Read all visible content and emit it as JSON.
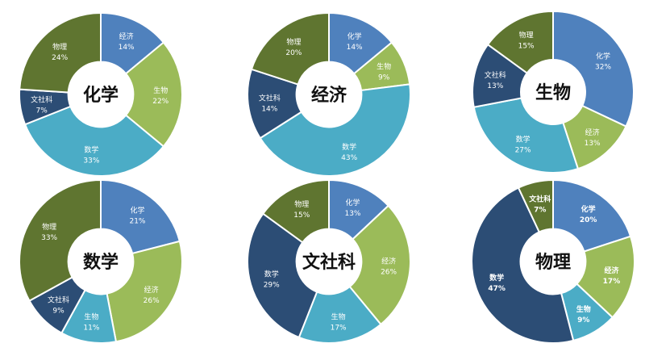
{
  "colors": {
    "化学": "#4f81bd",
    "经济": "#9bbb59",
    "数学": "#4bacc6",
    "文社科": "#2c4d75",
    "物理": "#5f7530",
    "生物": "#9bbb59"
  },
  "chart_data": [
    {
      "type": "pie",
      "title": "化学",
      "categories": [
        "经济",
        "生物",
        "数学",
        "文社科",
        "物理"
      ],
      "values": [
        14,
        22,
        33,
        7,
        24
      ],
      "labels": [
        "14%",
        "22%",
        "33%",
        "7%",
        "24%"
      ],
      "slice_colors": [
        "#4f81bd",
        "#9bbb59",
        "#4bacc6",
        "#2c4d75",
        "#5f7530"
      ]
    },
    {
      "type": "pie",
      "title": "经济",
      "categories": [
        "化学",
        "生物",
        "数学",
        "文社科",
        "物理"
      ],
      "values": [
        14,
        9,
        43,
        14,
        20
      ],
      "labels": [
        "14%",
        "9%",
        "43%",
        "14%",
        "20%"
      ],
      "slice_colors": [
        "#4f81bd",
        "#9bbb59",
        "#4bacc6",
        "#2c4d75",
        "#5f7530"
      ]
    },
    {
      "type": "pie",
      "title": "生物",
      "categories": [
        "化学",
        "经济",
        "数学",
        "文社科",
        "物理"
      ],
      "values": [
        32,
        13,
        27,
        13,
        15
      ],
      "labels": [
        "32%",
        "13%",
        "27%",
        "13%",
        "15%"
      ],
      "slice_colors": [
        "#4f81bd",
        "#9bbb59",
        "#4bacc6",
        "#2c4d75",
        "#5f7530"
      ]
    },
    {
      "type": "pie",
      "title": "数学",
      "categories": [
        "化学",
        "经济",
        "生物",
        "文社科",
        "物理"
      ],
      "values": [
        21,
        26,
        11,
        9,
        33
      ],
      "labels": [
        "21%",
        "26%",
        "11%",
        "9%",
        "33%"
      ],
      "slice_colors": [
        "#4f81bd",
        "#9bbb59",
        "#4bacc6",
        "#2c4d75",
        "#5f7530"
      ]
    },
    {
      "type": "pie",
      "title": "文社科",
      "categories": [
        "化学",
        "经济",
        "生物",
        "数学",
        "物理"
      ],
      "values": [
        13,
        26,
        17,
        29,
        15
      ],
      "labels": [
        "13%",
        "26%",
        "17%",
        "29%",
        "15%"
      ],
      "slice_colors": [
        "#4f81bd",
        "#9bbb59",
        "#4bacc6",
        "#2c4d75",
        "#5f7530"
      ]
    },
    {
      "type": "pie",
      "title": "物理",
      "categories": [
        "化学",
        "经济",
        "生物",
        "数学",
        "文社科"
      ],
      "values": [
        20,
        17,
        9,
        47,
        7
      ],
      "labels": [
        "20%",
        "17%",
        "9%",
        "47%",
        "7%"
      ],
      "slice_colors": [
        "#4f81bd",
        "#9bbb59",
        "#4bacc6",
        "#2c4d75",
        "#5f7530"
      ],
      "bold_labels": true
    }
  ]
}
